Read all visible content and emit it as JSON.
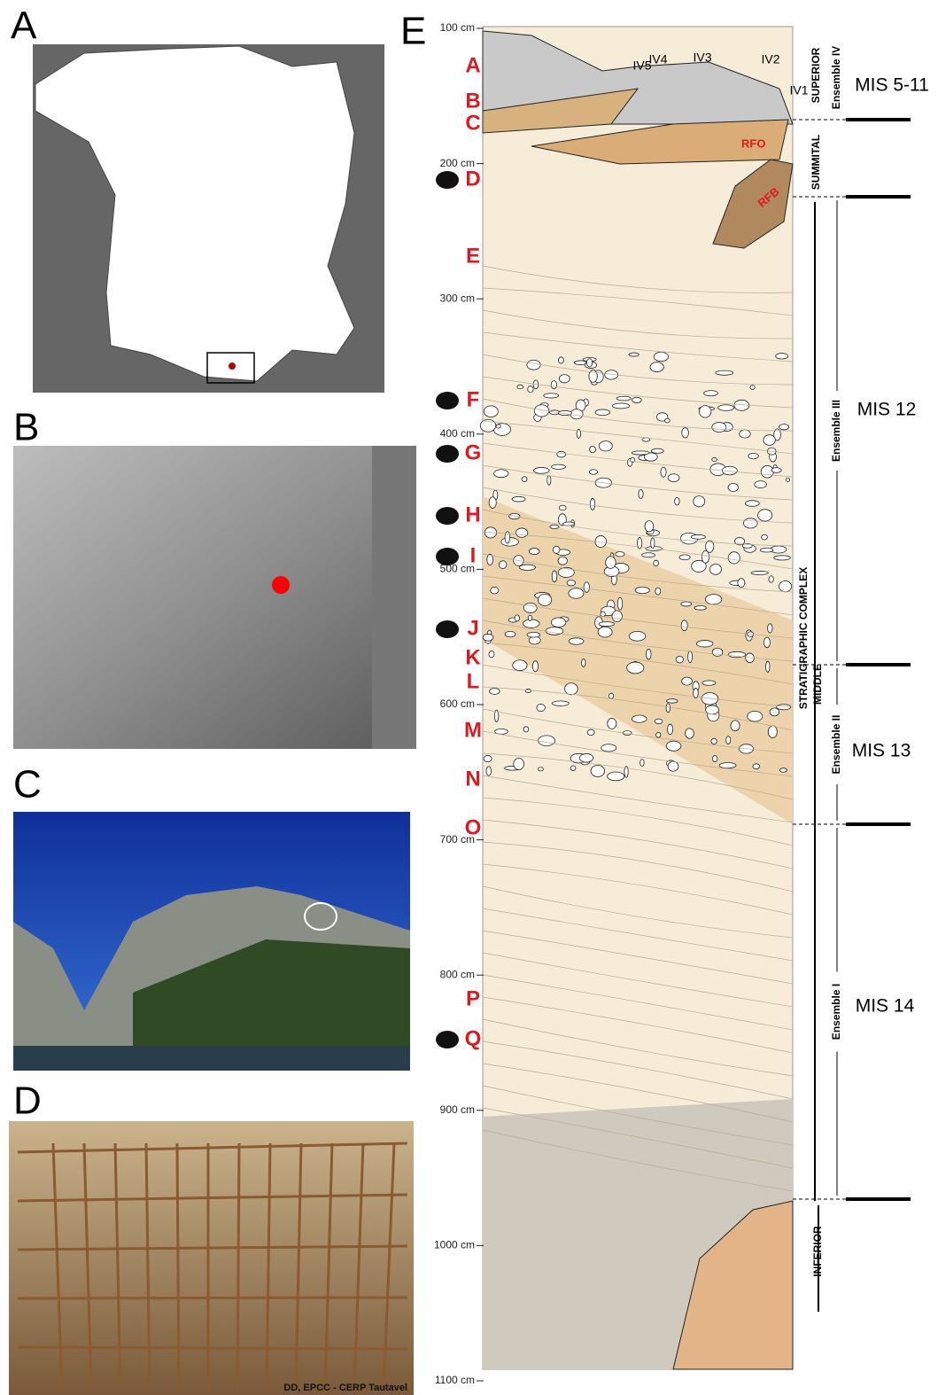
{
  "panels": {
    "a": "A",
    "b": "B",
    "c": "C",
    "d": "D",
    "e": "E"
  },
  "credit": "DD, EPCC - CERP Tautavel",
  "depths": [
    "100 cm",
    "200 cm",
    "300 cm",
    "400 cm",
    "500 cm",
    "600 cm",
    "700 cm",
    "800 cm",
    "900 cm",
    "1000 cm",
    "1100 cm"
  ],
  "layers": [
    "A",
    "B",
    "C",
    "D",
    "E",
    "F",
    "G",
    "H",
    "I",
    "J",
    "K",
    "L",
    "M",
    "N",
    "O",
    "P",
    "Q"
  ],
  "units": {
    "iv": [
      "IV5",
      "IV4",
      "IV3",
      "IV2",
      "IV1"
    ],
    "rfo": "RFO",
    "rfb": "RFB"
  },
  "complex": {
    "title": "STRATIGRAPHIC COMPLEX",
    "superior": "SUPERIOR",
    "summital": "SUMMITAL",
    "middle": "MIDDLE",
    "inferior": "INFERIOR"
  },
  "ensembles": [
    "Ensemble IV",
    "Ensemble III",
    "Ensemble II",
    "Ensemble I"
  ],
  "mis": [
    "MIS 5-11",
    "MIS 12",
    "MIS 13",
    "MIS 14"
  ]
}
